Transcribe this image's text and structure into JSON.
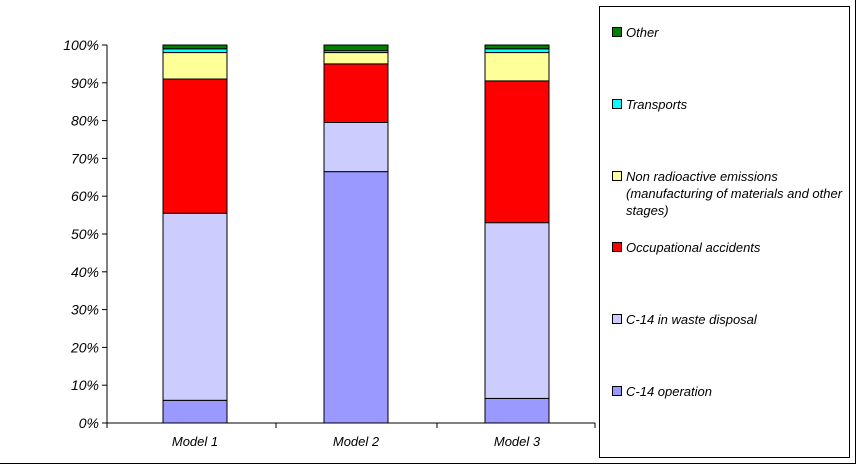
{
  "chart_data": {
    "type": "bar",
    "stacked": true,
    "orientation": "vertical",
    "categories": [
      "Model 1",
      "Model 2",
      "Model 3"
    ],
    "ylim": [
      0,
      100
    ],
    "yticks": [
      "0%",
      "10%",
      "20%",
      "30%",
      "40%",
      "50%",
      "60%",
      "70%",
      "80%",
      "90%",
      "100%"
    ],
    "grid": false,
    "legend_position": "right",
    "series": [
      {
        "name": "C-14 operation",
        "color": "#9999ff",
        "values": [
          6,
          66.5,
          6.5
        ]
      },
      {
        "name": "C-14 in waste disposal",
        "color": "#ccccff",
        "values": [
          49.5,
          13,
          46.5
        ]
      },
      {
        "name": "Occupational accidents",
        "color": "#ff0000",
        "values": [
          35.5,
          15.5,
          37.5
        ]
      },
      {
        "name": "Non radioactive emissions (manufacturing of materials and other stages)",
        "color": "#ffff99",
        "values": [
          7,
          3,
          7.5
        ]
      },
      {
        "name": "Transports",
        "color": "#00ffff",
        "values": [
          1,
          0.5,
          1
        ]
      },
      {
        "name": "Other",
        "color": "#008000",
        "values": [
          1,
          1.5,
          1
        ]
      }
    ]
  }
}
